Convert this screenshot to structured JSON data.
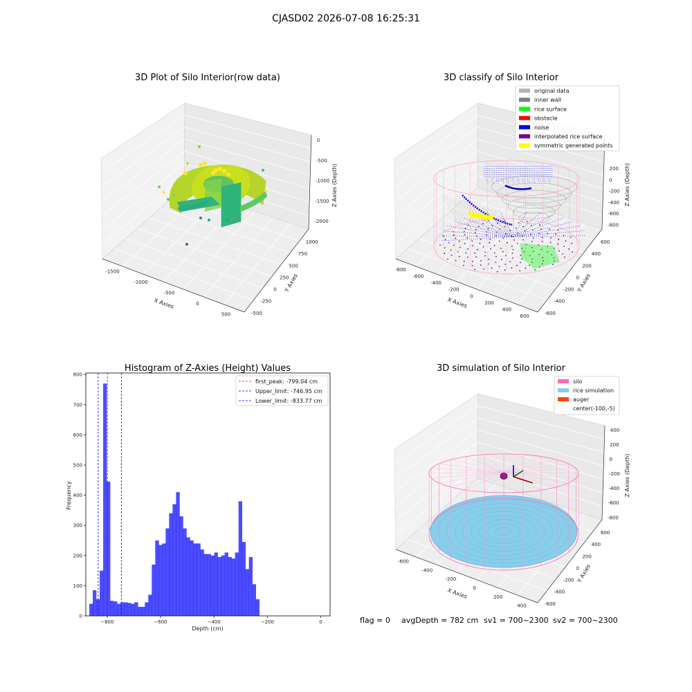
{
  "figure": {
    "suptitle": "CJASD02 2026-07-08 16:25:31",
    "footer": {
      "flag": "flag = 0",
      "avg_depth": "avgDepth = 782 cm",
      "sv1": "sv1 = 700~2300",
      "sv2": "sv2 = 700~2300"
    }
  },
  "chart_data": [
    {
      "type": "scatter",
      "title": "3D Plot of Silo Interior(row data)",
      "xlabel": "X Axies",
      "ylabel": "Y Axies",
      "zlabel": "Z Axies (Depth)",
      "x_ticks": [
        "-1500",
        "-1000",
        "-500",
        "0",
        "500"
      ],
      "y_ticks": [
        "-500",
        "-250",
        "0",
        "250",
        "500",
        "750",
        "1000"
      ],
      "z_ticks": [
        "0",
        "-500",
        "-1000",
        "-1500",
        "-2000"
      ],
      "colormap": "viridis"
    },
    {
      "type": "scatter",
      "title": "3D classify of Silo Interior",
      "xlabel": "X Axies",
      "ylabel": "Y Axies",
      "zlabel": "Z Axies (Depth)",
      "x_ticks": [
        "-800",
        "-600",
        "-400",
        "-200",
        "0",
        "200",
        "400",
        "600"
      ],
      "y_ticks": [
        "-600",
        "-400",
        "-200",
        "0",
        "200",
        "400",
        "600"
      ],
      "z_ticks": [
        "200",
        "0",
        "-200",
        "-400",
        "-600",
        "-800"
      ],
      "legend": [
        {
          "label": "original data",
          "color": "#b3b3b3"
        },
        {
          "label": "inner wall",
          "color": "#808080"
        },
        {
          "label": "rice surface",
          "color": "#00ff00"
        },
        {
          "label": "obstacle",
          "color": "#ff0000"
        },
        {
          "label": "noise",
          "color": "#0000ff"
        },
        {
          "label": "interpolated rice surface",
          "color": "#800080"
        },
        {
          "label": "symmetric generated points",
          "color": "#ffff00"
        }
      ]
    },
    {
      "type": "bar",
      "title": "Histogram of Z-Axies (Height) Values",
      "xlabel": "Depth (cm)",
      "ylabel": "Frequency",
      "xlim": [
        -880,
        35
      ],
      "ylim": [
        0,
        805
      ],
      "x_ticks": [
        -800,
        -600,
        -400,
        -200,
        0
      ],
      "y_ticks": [
        0,
        100,
        200,
        300,
        400,
        500,
        600,
        700,
        800
      ],
      "bin_start": -867,
      "bin_width": 13,
      "values": [
        40,
        85,
        55,
        150,
        770,
        445,
        50,
        48,
        40,
        45,
        45,
        43,
        40,
        45,
        30,
        30,
        45,
        70,
        170,
        250,
        235,
        240,
        290,
        340,
        370,
        410,
        330,
        290,
        260,
        250,
        240,
        240,
        220,
        205,
        205,
        200,
        210,
        195,
        200,
        210,
        195,
        190,
        210,
        380,
        245,
        155,
        195,
        105,
        55
      ],
      "color": "#0000ff",
      "vlines": [
        {
          "x": -799.04,
          "color": "#ff0000",
          "label": "first_peak: -799.04 cm"
        },
        {
          "x": -746.95,
          "color": "#0000ff",
          "label": "Upper_limit: -746.95 cm"
        },
        {
          "x": -833.77,
          "color": "#0000ff",
          "label": "Lower_limit: -833.77 cm"
        }
      ]
    },
    {
      "type": "scatter",
      "title": "3D simulation of Silo Interior",
      "xlabel": "X Axies",
      "ylabel": "Y Axies",
      "zlabel": "Z Axies (Depth)",
      "x_ticks": [
        "-600",
        "-400",
        "-200",
        "0",
        "200",
        "400"
      ],
      "y_ticks": [
        "-600",
        "-400",
        "-200",
        "0",
        "200",
        "400",
        "600"
      ],
      "z_ticks": [
        "400",
        "200",
        "0",
        "-200",
        "-400",
        "-600",
        "-800"
      ],
      "legend": [
        {
          "label": "silo",
          "color": "#ff69b4"
        },
        {
          "label": "rice simulation",
          "color": "#87ceeb"
        },
        {
          "label": "auger",
          "color": "#ff4500"
        },
        {
          "label": "center(-100,-5)",
          "color": "#ffffff"
        }
      ]
    }
  ]
}
